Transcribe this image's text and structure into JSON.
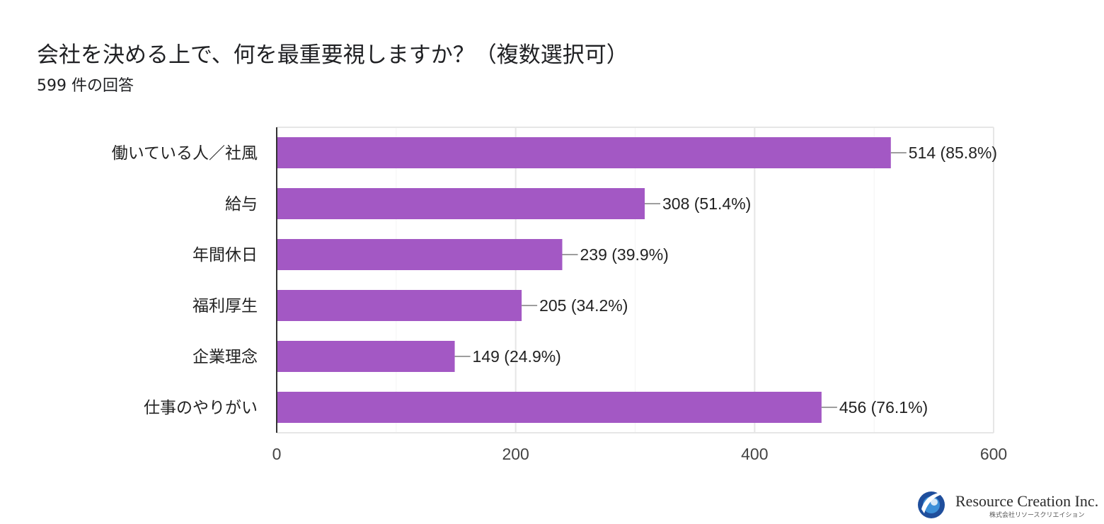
{
  "header": {
    "title": "会社を決める上で、何を最重要視しますか？（複数選択可）",
    "subtitle": "599 件の回答"
  },
  "chart_data": {
    "type": "bar",
    "orientation": "horizontal",
    "categories": [
      "働いている人／社風",
      "給与",
      "年間休日",
      "福利厚生",
      "企業理念",
      "仕事のやりがい"
    ],
    "values": [
      514,
      308,
      239,
      205,
      149,
      456
    ],
    "value_labels": [
      "514 (85.8%)",
      "308 (51.4%)",
      "239 (39.9%)",
      "205 (34.2%)",
      "149 (24.9%)",
      "456 (76.1%)"
    ],
    "percentages": [
      85.8,
      51.4,
      39.9,
      34.2,
      24.9,
      76.1
    ],
    "xlim": [
      0,
      600
    ],
    "xticks": [
      0,
      200,
      400,
      600
    ],
    "grid": true,
    "bar_color": "#a358c4"
  },
  "logo": {
    "name": "Resource Creation Inc.",
    "subname": "株式会社リソースクリエイション"
  }
}
